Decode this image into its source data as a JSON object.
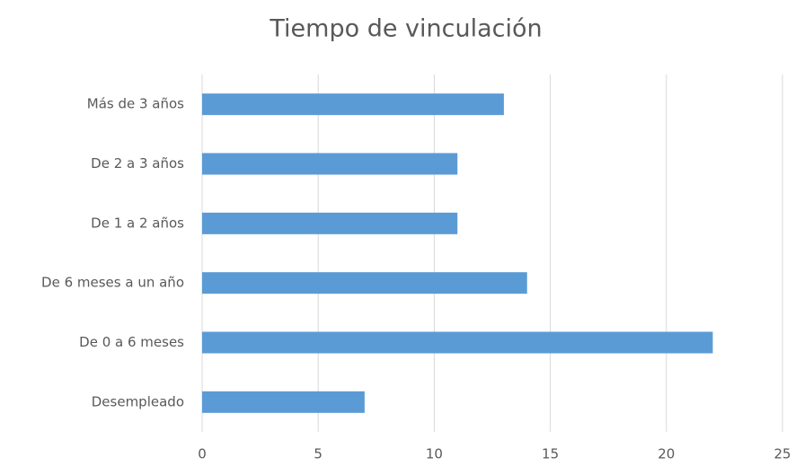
{
  "chart_data": {
    "type": "barh",
    "title": "Tiempo de vinculación",
    "categories": [
      "Más de 3 años",
      "De 2 a 3 años",
      "De 1 a 2 años",
      "De 6 meses a un año",
      "De 0 a 6 meses",
      "Desempleado"
    ],
    "values": [
      13,
      11,
      11,
      14,
      22,
      7
    ],
    "color": "#5b9bd5",
    "xlim": [
      0,
      25
    ],
    "xticks": [
      0,
      5,
      10,
      15,
      20,
      25
    ],
    "grid": true
  }
}
